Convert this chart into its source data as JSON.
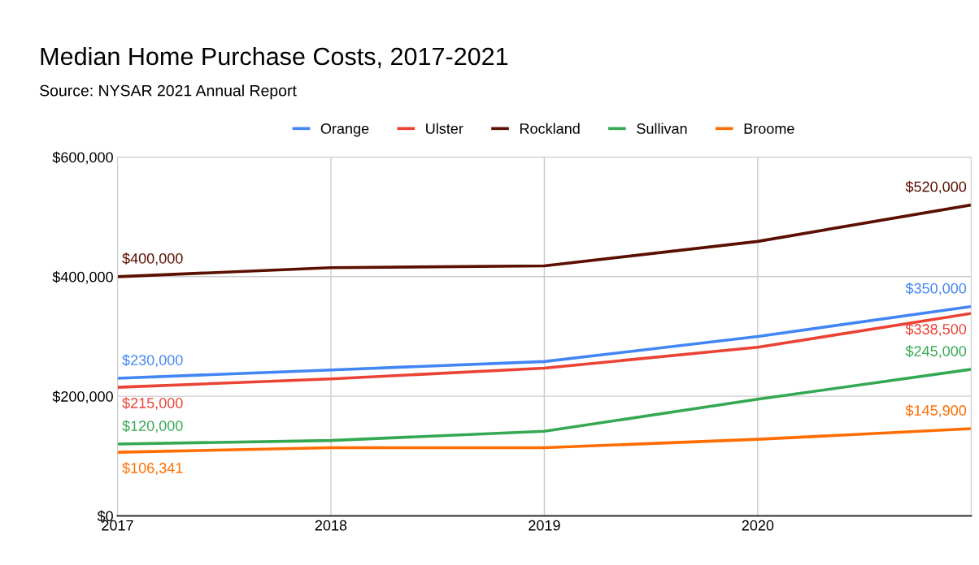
{
  "chart_data": {
    "type": "line",
    "title": "Median Home Purchase Costs, 2017-2021",
    "subtitle": "Source: NYSAR 2021 Annual Report",
    "x": [
      2017,
      2018,
      2019,
      2020,
      2021
    ],
    "series": [
      {
        "name": "Orange",
        "color": "#4285f4",
        "values": [
          230000,
          244000,
          258000,
          300000,
          350000
        ],
        "value_labels": [
          "$230,000",
          null,
          null,
          null,
          "$350,000"
        ]
      },
      {
        "name": "Ulster",
        "color": "#ea4335",
        "values": [
          215000,
          229000,
          247000,
          282000,
          338500
        ],
        "value_labels": [
          "$215,000",
          null,
          null,
          null,
          "$338,500"
        ]
      },
      {
        "name": "Rockland",
        "color": "#5b0f00",
        "values": [
          400000,
          415000,
          418000,
          459000,
          520000
        ],
        "value_labels": [
          "$400,000",
          null,
          null,
          null,
          "$520,000"
        ]
      },
      {
        "name": "Sullivan",
        "color": "#34a853",
        "values": [
          120000,
          126000,
          141500,
          195000,
          245000
        ],
        "value_labels": [
          "$120,000",
          null,
          null,
          null,
          "$245,000"
        ]
      },
      {
        "name": "Broome",
        "color": "#ff6d01",
        "values": [
          106341,
          114000,
          114000,
          128000,
          145900
        ],
        "value_labels": [
          "$106,341",
          null,
          null,
          null,
          "$145,900"
        ]
      }
    ],
    "xlim": [
      2017,
      2021
    ],
    "xticks": [
      2017,
      2018,
      2019,
      2020
    ],
    "ylim": [
      0,
      600000
    ],
    "yticks": [
      {
        "value": 0,
        "label": "$0"
      },
      {
        "value": 200000,
        "label": "$200,000"
      },
      {
        "value": 400000,
        "label": "$400,000"
      },
      {
        "value": 600000,
        "label": "$600,000"
      }
    ],
    "grid": true,
    "legend": "top",
    "marker": "none",
    "line_style": "solid"
  }
}
